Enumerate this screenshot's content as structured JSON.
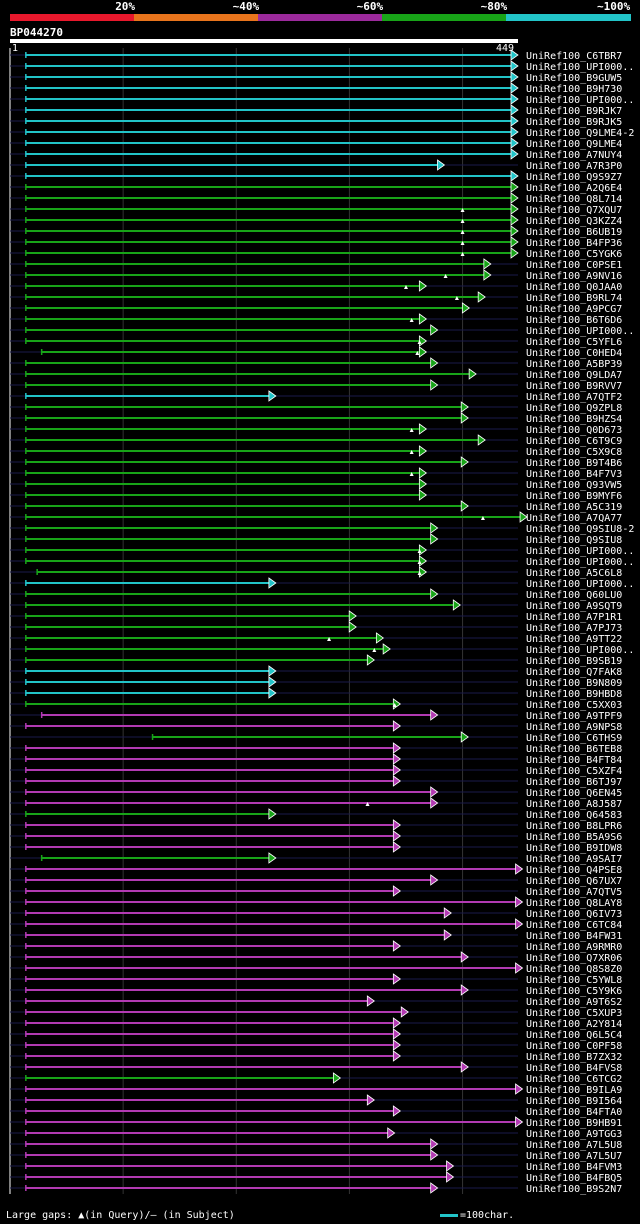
{
  "legend": {
    "segments": [
      {
        "label": "20%",
        "color": "#e8182c"
      },
      {
        "label": "~40%",
        "color": "#e8741c"
      },
      {
        "label": "~60%",
        "color": "#9c2a9c"
      },
      {
        "label": "~80%",
        "color": "#18a418"
      },
      {
        "label": "~100%",
        "color": "#22c4c8"
      }
    ]
  },
  "query": {
    "name": "BP044270",
    "start_label": "1",
    "end_label": "449"
  },
  "footer": {
    "gaps_text": "Large gaps: ▲(in Query)/– (in Subject)",
    "scale_text": "=100char."
  },
  "chart_data": {
    "type": "alignment-overview",
    "query_length": 449,
    "color_map": {
      "cyan": "#22c4c8",
      "green": "#18a418",
      "purple": "#b23ab2"
    },
    "hits": [
      {
        "name": "UniRef100_C6TBR7",
        "start": 14,
        "end": 449,
        "color": "cyan"
      },
      {
        "name": "UniRef100_UPI000..",
        "start": 14,
        "end": 449,
        "color": "cyan"
      },
      {
        "name": "UniRef100_B9GUW5",
        "start": 14,
        "end": 449,
        "color": "cyan"
      },
      {
        "name": "UniRef100_B9H730",
        "start": 14,
        "end": 449,
        "color": "cyan"
      },
      {
        "name": "UniRef100_UPI000..",
        "start": 14,
        "end": 449,
        "color": "cyan"
      },
      {
        "name": "UniRef100_B9RJK7",
        "start": 14,
        "end": 449,
        "color": "cyan"
      },
      {
        "name": "UniRef100_B9RJK5",
        "start": 14,
        "end": 449,
        "color": "cyan"
      },
      {
        "name": "UniRef100_Q9LME4-2",
        "start": 14,
        "end": 449,
        "color": "cyan"
      },
      {
        "name": "UniRef100_Q9LME4",
        "start": 14,
        "end": 449,
        "color": "cyan"
      },
      {
        "name": "UniRef100_A7NUY4",
        "start": 14,
        "end": 449,
        "color": "cyan"
      },
      {
        "name": "UniRef100_A7R3P0",
        "start": 14,
        "end": 384,
        "color": "cyan"
      },
      {
        "name": "UniRef100_Q9S9Z7",
        "start": 14,
        "end": 449,
        "color": "cyan"
      },
      {
        "name": "UniRef100_A2Q6E4",
        "start": 14,
        "end": 449,
        "color": "green"
      },
      {
        "name": "UniRef100_Q8L714",
        "start": 14,
        "end": 449,
        "color": "green"
      },
      {
        "name": "UniRef100_Q7XQU7",
        "start": 14,
        "end": 449,
        "color": "green",
        "gap": 400
      },
      {
        "name": "UniRef100_Q3KZZ4",
        "start": 14,
        "end": 449,
        "color": "green",
        "gap": 400
      },
      {
        "name": "UniRef100_B6UB19",
        "start": 14,
        "end": 449,
        "color": "green",
        "gap": 400
      },
      {
        "name": "UniRef100_B4FP36",
        "start": 14,
        "end": 449,
        "color": "green",
        "gap": 400
      },
      {
        "name": "UniRef100_C5YGK6",
        "start": 14,
        "end": 449,
        "color": "green",
        "gap": 400
      },
      {
        "name": "UniRef100_C0PSE1",
        "start": 14,
        "end": 425,
        "color": "green"
      },
      {
        "name": "UniRef100_A9NV16",
        "start": 14,
        "end": 425,
        "color": "green",
        "gap": 385
      },
      {
        "name": "UniRef100_Q0JAA0",
        "start": 14,
        "end": 368,
        "color": "green",
        "gap": 350
      },
      {
        "name": "UniRef100_B9RL74",
        "start": 14,
        "end": 420,
        "color": "green",
        "gap": 395
      },
      {
        "name": "UniRef100_A9PCG7",
        "start": 14,
        "end": 406,
        "color": "green"
      },
      {
        "name": "UniRef100_B6T6D6",
        "start": 14,
        "end": 368,
        "color": "green",
        "gap": 355
      },
      {
        "name": "UniRef100_UPI000..",
        "start": 14,
        "end": 378,
        "color": "green"
      },
      {
        "name": "UniRef100_C5YFL6",
        "start": 14,
        "end": 368,
        "color": "green",
        "gap": 362
      },
      {
        "name": "UniRef100_C0HED4",
        "start": 28,
        "end": 368,
        "color": "green",
        "gap": 360
      },
      {
        "name": "UniRef100_A5BP39",
        "start": 14,
        "end": 378,
        "color": "green"
      },
      {
        "name": "UniRef100_Q9LDA7",
        "start": 14,
        "end": 412,
        "color": "green"
      },
      {
        "name": "UniRef100_B9RVV7",
        "start": 14,
        "end": 378,
        "color": "green"
      },
      {
        "name": "UniRef100_A7QTF2",
        "start": 14,
        "end": 235,
        "color": "cyan"
      },
      {
        "name": "UniRef100_Q9ZPL8",
        "start": 14,
        "end": 405,
        "color": "green"
      },
      {
        "name": "UniRef100_B9HZS4",
        "start": 14,
        "end": 405,
        "color": "green"
      },
      {
        "name": "UniRef100_Q0D673",
        "start": 14,
        "end": 368,
        "color": "green",
        "gap": 355
      },
      {
        "name": "UniRef100_C6T9C9",
        "start": 14,
        "end": 420,
        "color": "green"
      },
      {
        "name": "UniRef100_C5X9C8",
        "start": 14,
        "end": 368,
        "color": "green",
        "gap": 355
      },
      {
        "name": "UniRef100_B9T4B6",
        "start": 14,
        "end": 405,
        "color": "green"
      },
      {
        "name": "UniRef100_B4F7V3",
        "start": 14,
        "end": 368,
        "color": "green",
        "gap": 355
      },
      {
        "name": "UniRef100_Q93VW5",
        "start": 14,
        "end": 368,
        "color": "green"
      },
      {
        "name": "UniRef100_B9MYF6",
        "start": 14,
        "end": 368,
        "color": "green"
      },
      {
        "name": "UniRef100_A5C319",
        "start": 14,
        "end": 405,
        "color": "green"
      },
      {
        "name": "UniRef100_A7QA77",
        "start": 14,
        "end": 457,
        "color": "green",
        "gap": 418
      },
      {
        "name": "UniRef100_Q9SIU8-2",
        "start": 14,
        "end": 378,
        "color": "green"
      },
      {
        "name": "UniRef100_Q9SIU8",
        "start": 14,
        "end": 378,
        "color": "green"
      },
      {
        "name": "UniRef100_UPI000..",
        "start": 14,
        "end": 368,
        "color": "green",
        "gap": 362
      },
      {
        "name": "UniRef100_UPI000..",
        "start": 14,
        "end": 368,
        "color": "green",
        "gap": 362
      },
      {
        "name": "UniRef100_A5C6L8",
        "start": 24,
        "end": 368,
        "color": "green",
        "gap": 362
      },
      {
        "name": "UniRef100_UPI000..",
        "start": 14,
        "end": 235,
        "color": "cyan"
      },
      {
        "name": "UniRef100_Q60LU0",
        "start": 14,
        "end": 378,
        "color": "green"
      },
      {
        "name": "UniRef100_A9SQT9",
        "start": 14,
        "end": 398,
        "color": "green"
      },
      {
        "name": "UniRef100_A7P1R1",
        "start": 14,
        "end": 306,
        "color": "green"
      },
      {
        "name": "UniRef100_A7PJ73",
        "start": 14,
        "end": 306,
        "color": "green"
      },
      {
        "name": "UniRef100_A9TT22",
        "start": 14,
        "end": 330,
        "color": "green",
        "gap": 282
      },
      {
        "name": "UniRef100_UPI000..",
        "start": 14,
        "end": 336,
        "color": "green",
        "gap": 322
      },
      {
        "name": "UniRef100_B9SB19",
        "start": 14,
        "end": 322,
        "color": "green"
      },
      {
        "name": "UniRef100_Q7FAK8",
        "start": 14,
        "end": 235,
        "color": "cyan"
      },
      {
        "name": "UniRef100_B9N809",
        "start": 14,
        "end": 235,
        "color": "cyan"
      },
      {
        "name": "UniRef100_B9HBD8",
        "start": 14,
        "end": 235,
        "color": "cyan"
      },
      {
        "name": "UniRef100_C5XX03",
        "start": 14,
        "end": 345,
        "color": "green",
        "gap": 340
      },
      {
        "name": "UniRef100_A9TPF9",
        "start": 28,
        "end": 378,
        "color": "purple"
      },
      {
        "name": "UniRef100_A9NPS8",
        "start": 14,
        "end": 345,
        "color": "purple"
      },
      {
        "name": "UniRef100_C6THS9",
        "start": 126,
        "end": 405,
        "color": "green"
      },
      {
        "name": "UniRef100_B6TEB8",
        "start": 14,
        "end": 345,
        "color": "purple"
      },
      {
        "name": "UniRef100_B4FT84",
        "start": 14,
        "end": 345,
        "color": "purple"
      },
      {
        "name": "UniRef100_C5XZF4",
        "start": 14,
        "end": 345,
        "color": "purple"
      },
      {
        "name": "UniRef100_B6TJ97",
        "start": 14,
        "end": 345,
        "color": "purple"
      },
      {
        "name": "UniRef100_Q6EN45",
        "start": 14,
        "end": 378,
        "color": "purple"
      },
      {
        "name": "UniRef100_A8J587",
        "start": 14,
        "end": 378,
        "color": "purple",
        "gap": 316
      },
      {
        "name": "UniRef100_Q64583",
        "start": 14,
        "end": 235,
        "color": "green"
      },
      {
        "name": "UniRef100_B8LPR6",
        "start": 14,
        "end": 345,
        "color": "purple"
      },
      {
        "name": "UniRef100_B5A9S6",
        "start": 14,
        "end": 345,
        "color": "purple"
      },
      {
        "name": "UniRef100_B9IDW8",
        "start": 14,
        "end": 345,
        "color": "purple"
      },
      {
        "name": "UniRef100_A9SAI7",
        "start": 28,
        "end": 235,
        "color": "green"
      },
      {
        "name": "UniRef100_Q4PSE8",
        "start": 14,
        "end": 453,
        "color": "purple"
      },
      {
        "name": "UniRef100_Q67UX7",
        "start": 14,
        "end": 378,
        "color": "purple"
      },
      {
        "name": "UniRef100_A7QTV5",
        "start": 14,
        "end": 345,
        "color": "purple"
      },
      {
        "name": "UniRef100_Q8LAY8",
        "start": 14,
        "end": 453,
        "color": "purple"
      },
      {
        "name": "UniRef100_Q6IV73",
        "start": 14,
        "end": 390,
        "color": "purple"
      },
      {
        "name": "UniRef100_C6TC84",
        "start": 14,
        "end": 453,
        "color": "purple"
      },
      {
        "name": "UniRef100_B4FW31",
        "start": 14,
        "end": 390,
        "color": "purple"
      },
      {
        "name": "UniRef100_A9RMR0",
        "start": 14,
        "end": 345,
        "color": "purple"
      },
      {
        "name": "UniRef100_Q7XR06",
        "start": 14,
        "end": 405,
        "color": "purple"
      },
      {
        "name": "UniRef100_Q8S8Z0",
        "start": 14,
        "end": 453,
        "color": "purple"
      },
      {
        "name": "UniRef100_C5YWL8",
        "start": 14,
        "end": 345,
        "color": "purple"
      },
      {
        "name": "UniRef100_C5Y9K6",
        "start": 14,
        "end": 405,
        "color": "purple"
      },
      {
        "name": "UniRef100_A9T6S2",
        "start": 14,
        "end": 322,
        "color": "purple"
      },
      {
        "name": "UniRef100_C5XUP3",
        "start": 14,
        "end": 352,
        "color": "purple"
      },
      {
        "name": "UniRef100_A2Y814",
        "start": 14,
        "end": 345,
        "color": "purple"
      },
      {
        "name": "UniRef100_Q6L5C4",
        "start": 14,
        "end": 345,
        "color": "purple"
      },
      {
        "name": "UniRef100_C0PF58",
        "start": 14,
        "end": 345,
        "color": "purple"
      },
      {
        "name": "UniRef100_B7ZX32",
        "start": 14,
        "end": 345,
        "color": "purple"
      },
      {
        "name": "UniRef100_B4FVS8",
        "start": 14,
        "end": 405,
        "color": "purple"
      },
      {
        "name": "UniRef100_C6TCG2",
        "start": 14,
        "end": 292,
        "color": "green"
      },
      {
        "name": "UniRef100_B9ILA9",
        "start": 14,
        "end": 453,
        "color": "purple"
      },
      {
        "name": "UniRef100_B9I564",
        "start": 14,
        "end": 322,
        "color": "purple"
      },
      {
        "name": "UniRef100_B4FTA0",
        "start": 14,
        "end": 345,
        "color": "purple"
      },
      {
        "name": "UniRef100_B9HB91",
        "start": 14,
        "end": 453,
        "color": "purple"
      },
      {
        "name": "UniRef100_A9TGG3",
        "start": 14,
        "end": 340,
        "color": "purple"
      },
      {
        "name": "UniRef100_A7L5U8",
        "start": 14,
        "end": 378,
        "color": "purple"
      },
      {
        "name": "UniRef100_A7L5U7",
        "start": 14,
        "end": 378,
        "color": "purple"
      },
      {
        "name": "UniRef100_B4FVM3",
        "start": 14,
        "end": 392,
        "color": "purple"
      },
      {
        "name": "UniRef100_B4FBQ5",
        "start": 14,
        "end": 392,
        "color": "purple"
      },
      {
        "name": "UniRef100_B9S2N7",
        "start": 14,
        "end": 378,
        "color": "purple"
      }
    ]
  }
}
